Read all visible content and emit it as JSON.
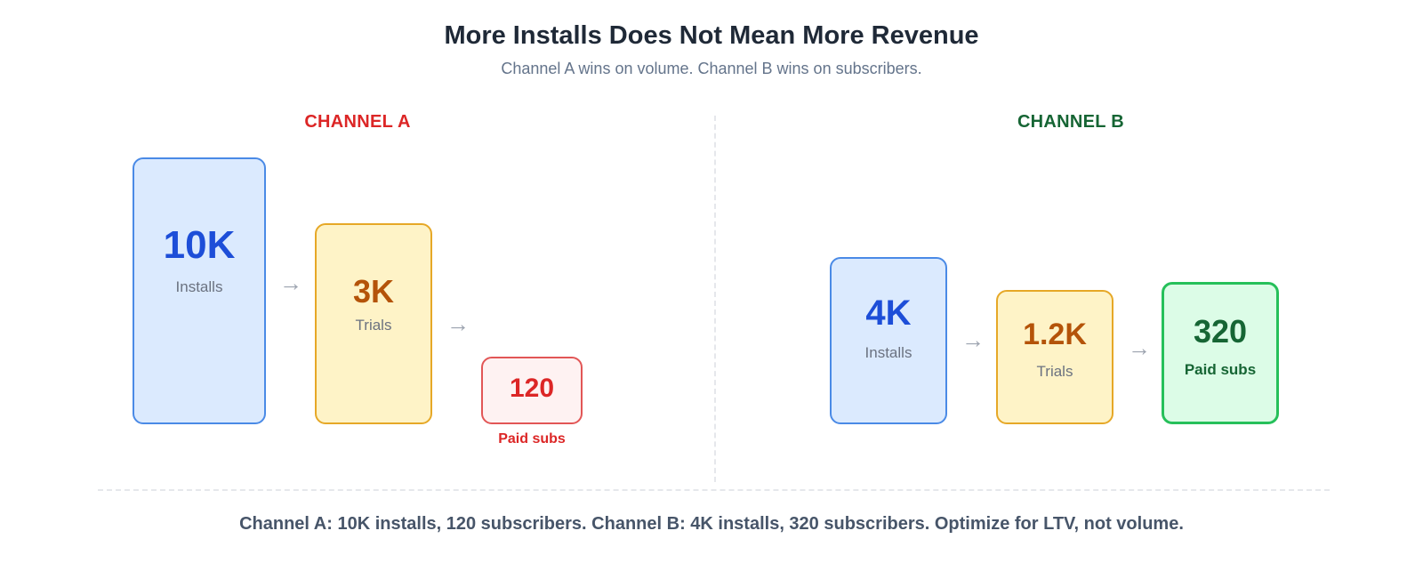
{
  "title": "More Installs Does Not Mean More Revenue",
  "subtitle": "Channel A wins on volume. Channel B wins on subscribers.",
  "channels": {
    "a": {
      "label": "CHANNEL A",
      "color": "#dc2626",
      "stages": [
        {
          "value": "10K",
          "label": "Installs",
          "count": 10000
        },
        {
          "value": "3K",
          "label": "Trials",
          "count": 3000
        },
        {
          "value": "120",
          "label": "Paid subs",
          "count": 120
        }
      ]
    },
    "b": {
      "label": "CHANNEL B",
      "color": "#166534",
      "stages": [
        {
          "value": "4K",
          "label": "Installs",
          "count": 4000
        },
        {
          "value": "1.2K",
          "label": "Trials",
          "count": 1200
        },
        {
          "value": "320",
          "label": "Paid subs",
          "count": 320
        }
      ]
    }
  },
  "arrow_glyph": "→",
  "footer": "Channel A: 10K installs, 120 subscribers. Channel B: 4K installs, 320 subscribers. Optimize for LTV, not volume."
}
